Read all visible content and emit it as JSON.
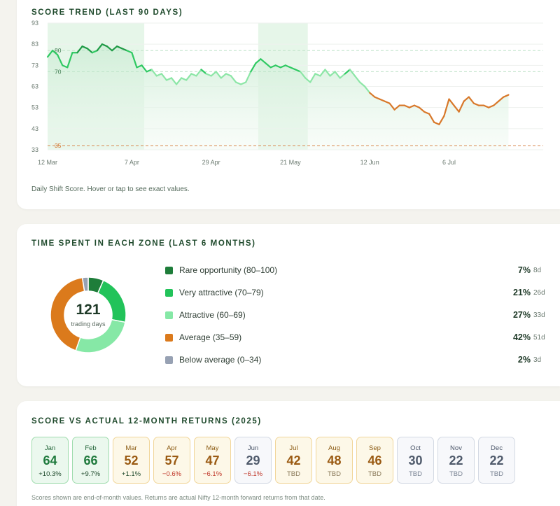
{
  "trend": {
    "title": "SCORE TREND (LAST 90 DAYS)",
    "caption": "Daily Shift Score. Hover or tap to see exact values."
  },
  "zones": {
    "title": "TIME SPENT IN EACH ZONE (LAST 6 MONTHS)",
    "total": "121",
    "total_label": "trading days",
    "items": [
      {
        "label": "Rare opportunity (80–100)",
        "pct": "7%",
        "days": "8d",
        "value": 8,
        "color": "#1e7d3a"
      },
      {
        "label": "Very attractive (70–79)",
        "pct": "21%",
        "days": "26d",
        "value": 26,
        "color": "#22c35a"
      },
      {
        "label": "Attractive (60–69)",
        "pct": "27%",
        "days": "33d",
        "value": 33,
        "color": "#86e8a6"
      },
      {
        "label": "Average (35–59)",
        "pct": "42%",
        "days": "51d",
        "value": 51,
        "color": "#db7a1c"
      },
      {
        "label": "Below average (0–34)",
        "pct": "2%",
        "days": "3d",
        "value": 3,
        "color": "#97a1b3"
      }
    ]
  },
  "returns": {
    "title": "SCORE VS ACTUAL 12-MONTH RETURNS (2025)",
    "caption": "Scores shown are end-of-month values. Returns are actual Nifty 12-month forward returns from that date.",
    "months": [
      {
        "name": "Jan",
        "score": "64",
        "ret": "+10.3%",
        "tone": "green",
        "ret_tone": "pos"
      },
      {
        "name": "Feb",
        "score": "66",
        "ret": "+9.7%",
        "tone": "green",
        "ret_tone": "pos"
      },
      {
        "name": "Mar",
        "score": "52",
        "ret": "+1.1%",
        "tone": "amber",
        "ret_tone": "pos"
      },
      {
        "name": "Apr",
        "score": "57",
        "ret": "−0.6%",
        "tone": "amber",
        "ret_tone": "neg"
      },
      {
        "name": "May",
        "score": "47",
        "ret": "−6.1%",
        "tone": "amber",
        "ret_tone": "neg"
      },
      {
        "name": "Jun",
        "score": "29",
        "ret": "−6.1%",
        "tone": "gray",
        "ret_tone": "neg"
      },
      {
        "name": "Jul",
        "score": "42",
        "ret": "TBD",
        "tone": "amber",
        "ret_tone": "tbd"
      },
      {
        "name": "Aug",
        "score": "48",
        "ret": "TBD",
        "tone": "amber",
        "ret_tone": "tbd"
      },
      {
        "name": "Sep",
        "score": "46",
        "ret": "TBD",
        "tone": "amber",
        "ret_tone": "tbd"
      },
      {
        "name": "Oct",
        "score": "30",
        "ret": "TBD",
        "tone": "gray",
        "ret_tone": "tbd"
      },
      {
        "name": "Nov",
        "score": "22",
        "ret": "TBD",
        "tone": "gray",
        "ret_tone": "tbd"
      },
      {
        "name": "Dec",
        "score": "22",
        "ret": "TBD",
        "tone": "gray",
        "ret_tone": "tbd"
      }
    ]
  },
  "chart_data": [
    {
      "type": "line",
      "title": "SCORE TREND (LAST 90 DAYS)",
      "ylim": [
        33,
        93
      ],
      "yticks": [
        "93",
        "83",
        "73",
        "63",
        "53",
        "43",
        "33"
      ],
      "xticks": [
        {
          "label": "12 Mar",
          "day": 0
        },
        {
          "label": "7 Apr",
          "day": 17
        },
        {
          "label": "29 Apr",
          "day": 33
        },
        {
          "label": "21 May",
          "day": 49
        },
        {
          "label": "12 Jun",
          "day": 65
        },
        {
          "label": "6 Jul",
          "day": 81
        }
      ],
      "reference_lines": [
        {
          "label": "80",
          "value": 80,
          "color": "#bfe3c9"
        },
        {
          "label": "70",
          "value": 70,
          "color": "#bfe3c9"
        },
        {
          "label": "35",
          "value": 35,
          "color": "#d88a50"
        }
      ],
      "highlight_ranges": [
        [
          0,
          19.5
        ],
        [
          42.5,
          52.5
        ]
      ],
      "zone_colors": {
        "rare": "#1e9a45",
        "very": "#2fc962",
        "attractive": "#8ce6a6",
        "average": "#d8782a"
      },
      "x_max": 100,
      "values": [
        77,
        80,
        78,
        73,
        72,
        79,
        79,
        82,
        81,
        79,
        80,
        83,
        82,
        80,
        82,
        81,
        80,
        79,
        72,
        73,
        70,
        71,
        68,
        69,
        66,
        67,
        64,
        67,
        66,
        69,
        68,
        71,
        69,
        68,
        70,
        67,
        69,
        68,
        65,
        64,
        65,
        70,
        74,
        76,
        74,
        72,
        73,
        72,
        73,
        72,
        71,
        70,
        67,
        65,
        69,
        68,
        71,
        68,
        70,
        67,
        69,
        71,
        68,
        65,
        63,
        60,
        58,
        57,
        56,
        55,
        52,
        54,
        54,
        53,
        54,
        53,
        51,
        50,
        46,
        45,
        49,
        57,
        54,
        51,
        56,
        58,
        55,
        54,
        54,
        53,
        54,
        56,
        58,
        59
      ]
    },
    {
      "type": "pie",
      "title": "TIME SPENT IN EACH ZONE (LAST 6 MONTHS)",
      "categories": [
        "Rare opportunity (80–100)",
        "Very attractive (70–79)",
        "Attractive (60–69)",
        "Average (35–59)",
        "Below average (0–34)"
      ],
      "values": [
        8,
        26,
        33,
        51,
        3
      ]
    },
    {
      "type": "table",
      "title": "SCORE VS ACTUAL 12-MONTH RETURNS (2025)",
      "categories": [
        "Jan",
        "Feb",
        "Mar",
        "Apr",
        "May",
        "Jun",
        "Jul",
        "Aug",
        "Sep",
        "Oct",
        "Nov",
        "Dec"
      ],
      "series": [
        {
          "name": "Score",
          "values": [
            64,
            66,
            52,
            57,
            47,
            29,
            42,
            48,
            46,
            30,
            22,
            22
          ]
        },
        {
          "name": "Return",
          "values": [
            "+10.3%",
            "+9.7%",
            "+1.1%",
            "−0.6%",
            "−6.1%",
            "−6.1%",
            "TBD",
            "TBD",
            "TBD",
            "TBD",
            "TBD",
            "TBD"
          ]
        }
      ]
    }
  ]
}
